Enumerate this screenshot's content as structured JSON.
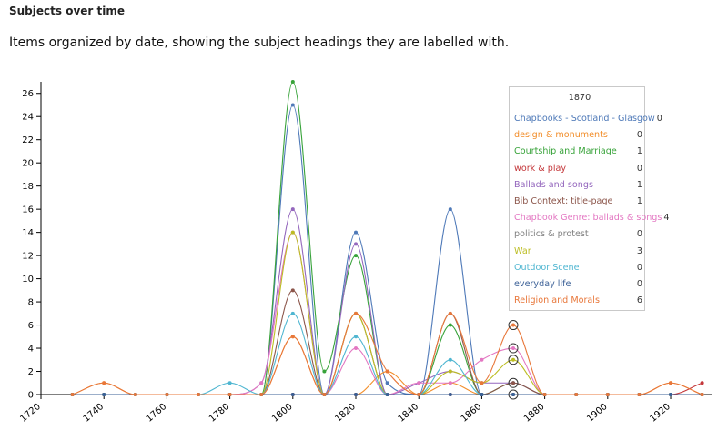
{
  "heading": "Subjects over time",
  "subtitle": "Items organized by date, showing the subject headings they are labelled with.",
  "chart_data": {
    "type": "line",
    "title": "",
    "xlabel": "",
    "ylabel": "",
    "x": [
      1730,
      1740,
      1750,
      1760,
      1770,
      1780,
      1790,
      1800,
      1810,
      1820,
      1830,
      1840,
      1850,
      1860,
      1870,
      1880,
      1890,
      1900,
      1910,
      1920,
      1930
    ],
    "xlim": [
      1720,
      1933
    ],
    "ylim": [
      0,
      27
    ],
    "x_ticks": [
      1720,
      1740,
      1760,
      1780,
      1800,
      1820,
      1840,
      1860,
      1880,
      1900,
      1920
    ],
    "y_ticks": [
      0,
      2,
      4,
      6,
      8,
      10,
      12,
      14,
      16,
      18,
      20,
      22,
      24,
      26
    ],
    "grid": false,
    "series": [
      {
        "name": "Chapbooks - Scotland - Glasgow",
        "color": "#4e79b8",
        "values": [
          0,
          0,
          0,
          0,
          0,
          0,
          0,
          25,
          0,
          14,
          1,
          0,
          16,
          0,
          0,
          0,
          0,
          0,
          0,
          0,
          0
        ]
      },
      {
        "name": "design & monuments",
        "color": "#f28e2b",
        "values": [
          0,
          1,
          0,
          0,
          0,
          0,
          0,
          5,
          0,
          0,
          2,
          0,
          1,
          0,
          0,
          0,
          0,
          0,
          0,
          1,
          0
        ]
      },
      {
        "name": "Courtship and Marriage",
        "color": "#38a33a",
        "values": [
          0,
          0,
          0,
          0,
          0,
          0,
          0,
          27,
          2,
          12,
          0,
          0,
          6,
          0,
          1,
          0,
          0,
          0,
          0,
          0,
          0
        ]
      },
      {
        "name": "work & play",
        "color": "#c4373a",
        "values": [
          0,
          0,
          0,
          0,
          0,
          0,
          0,
          0,
          0,
          0,
          0,
          0,
          0,
          0,
          0,
          0,
          0,
          0,
          0,
          0,
          1
        ]
      },
      {
        "name": "Ballads and songs",
        "color": "#9467bd",
        "values": [
          0,
          0,
          0,
          0,
          0,
          0,
          1,
          16,
          0,
          13,
          0,
          1,
          2,
          1,
          1,
          0,
          0,
          0,
          0,
          0,
          0
        ]
      },
      {
        "name": "Bib Context: title-page",
        "color": "#8c564b",
        "values": [
          0,
          0,
          0,
          0,
          0,
          0,
          0,
          9,
          0,
          7,
          0,
          0,
          7,
          0,
          1,
          0,
          0,
          0,
          0,
          0,
          0
        ]
      },
      {
        "name": "Chapbook Genre: ballads & songs",
        "color": "#e377c2",
        "values": [
          0,
          0,
          0,
          0,
          0,
          0,
          1,
          14,
          0,
          4,
          0,
          1,
          1,
          3,
          4,
          0,
          0,
          0,
          0,
          0,
          0
        ]
      },
      {
        "name": "politics & protest",
        "color": "#7f7f7f",
        "values": [
          0,
          0,
          0,
          0,
          0,
          0,
          0,
          0,
          0,
          0,
          0,
          0,
          0,
          0,
          0,
          0,
          0,
          0,
          0,
          0,
          0
        ]
      },
      {
        "name": "War",
        "color": "#bcbd22",
        "values": [
          0,
          0,
          0,
          0,
          0,
          0,
          0,
          14,
          0,
          7,
          0,
          0,
          2,
          1,
          3,
          0,
          0,
          0,
          0,
          0,
          0
        ]
      },
      {
        "name": "Outdoor Scene",
        "color": "#4fb6d1",
        "values": [
          0,
          0,
          0,
          0,
          0,
          1,
          0,
          7,
          0,
          5,
          0,
          0,
          3,
          0,
          0,
          0,
          0,
          0,
          0,
          0,
          0
        ]
      },
      {
        "name": "everyday life",
        "color": "#3a5f96",
        "values": [
          0,
          0,
          0,
          0,
          0,
          0,
          0,
          0,
          0,
          0,
          0,
          0,
          0,
          0,
          0,
          0,
          0,
          0,
          0,
          0,
          0
        ]
      },
      {
        "name": "Religion and Morals",
        "color": "#e8773a",
        "values": [
          0,
          1,
          0,
          0,
          0,
          0,
          0,
          5,
          0,
          7,
          2,
          0,
          7,
          1,
          6,
          0,
          0,
          0,
          0,
          1,
          0
        ]
      }
    ],
    "highlight": {
      "x": 1870,
      "title": "1870"
    }
  }
}
